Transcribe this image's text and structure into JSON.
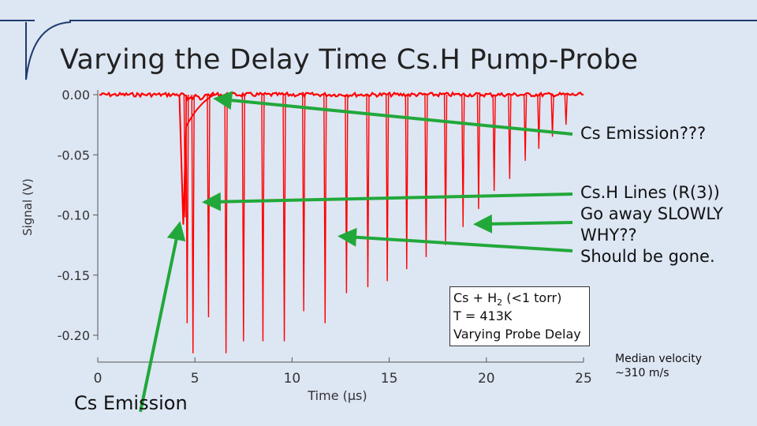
{
  "slide": {
    "title": "Varying the Delay Time Cs.H Pump-Probe"
  },
  "annotations": {
    "cs_emission_q": "Cs Emission???",
    "lines": [
      "Cs.H Lines (R(3))",
      "Go away SLOWLY",
      "WHY??",
      "Should be gone."
    ],
    "cs_emission": "Cs Emission",
    "velocity": [
      "Median velocity",
      "~310 m/s"
    ]
  },
  "legend_box": {
    "line1_prefix": "Cs + H",
    "line1_sub": "2",
    "line1_suffix": " (<1 torr)",
    "line2": "T = 413K",
    "line3": "Varying Probe Delay"
  },
  "colors": {
    "background": "#dde6f3",
    "trace": "#ff0000",
    "arrow": "#22a83a",
    "deco_line": "#1f3b6e"
  },
  "chart_data": {
    "type": "line",
    "xlabel": "Time (μs)",
    "ylabel": "Signal (V)",
    "xlim": [
      0,
      25
    ],
    "ylim": [
      -0.2,
      0.0
    ],
    "xticks": [
      0,
      5,
      10,
      15,
      20,
      25
    ],
    "xtick_labels": [
      "0",
      "5",
      "10",
      "15",
      "20",
      "25"
    ],
    "yticks": [
      0.0,
      -0.05,
      -0.1,
      -0.15,
      -0.2
    ],
    "ytick_labels": [
      "0.00",
      "-0.05",
      "-0.10",
      "-0.15",
      "-0.20"
    ],
    "grid": false,
    "series": [
      {
        "baseline": 0.0,
        "emission_peak": {
          "x": 4.4,
          "y": -0.108
        },
        "emission_recovery_until": 6.0,
        "spikes": [
          {
            "x": 4.5,
            "y": -0.102
          },
          {
            "x": 4.6,
            "y": -0.19
          },
          {
            "x": 4.9,
            "y": -0.215
          },
          {
            "x": 5.7,
            "y": -0.185
          },
          {
            "x": 6.6,
            "y": -0.215
          },
          {
            "x": 7.5,
            "y": -0.205
          },
          {
            "x": 8.5,
            "y": -0.205
          },
          {
            "x": 9.6,
            "y": -0.205
          },
          {
            "x": 10.6,
            "y": -0.18
          },
          {
            "x": 11.7,
            "y": -0.19
          },
          {
            "x": 12.8,
            "y": -0.165
          },
          {
            "x": 13.9,
            "y": -0.16
          },
          {
            "x": 14.9,
            "y": -0.155
          },
          {
            "x": 15.9,
            "y": -0.145
          },
          {
            "x": 16.9,
            "y": -0.135
          },
          {
            "x": 17.9,
            "y": -0.125
          },
          {
            "x": 18.8,
            "y": -0.11
          },
          {
            "x": 19.6,
            "y": -0.095
          },
          {
            "x": 20.4,
            "y": -0.08
          },
          {
            "x": 21.2,
            "y": -0.07
          },
          {
            "x": 22.0,
            "y": -0.055
          },
          {
            "x": 22.7,
            "y": -0.045
          },
          {
            "x": 23.4,
            "y": -0.035
          },
          {
            "x": 24.1,
            "y": -0.025
          }
        ]
      }
    ]
  }
}
